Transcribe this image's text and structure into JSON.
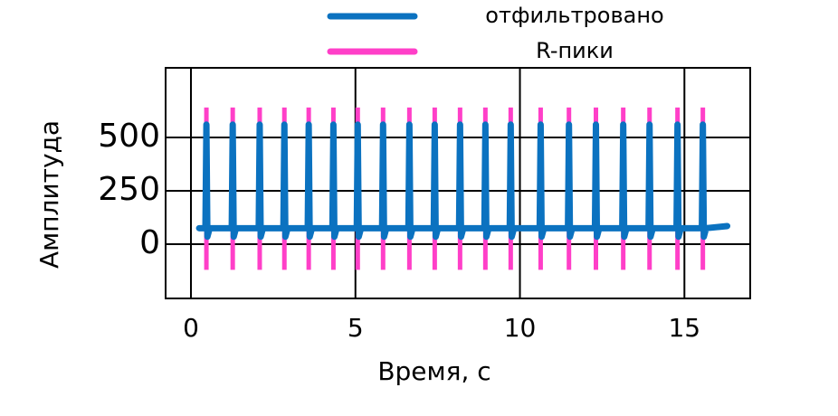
{
  "chart_data": {
    "type": "line",
    "xlabel": "Время, с",
    "ylabel": "Амплитуда",
    "xlim": [
      -0.77,
      17.0
    ],
    "ylim": [
      -254,
      826
    ],
    "xticks": [
      0,
      5,
      10,
      15
    ],
    "yticks": [
      0,
      250,
      500
    ],
    "grid": true,
    "legend": "top",
    "series": [
      {
        "name": "отфильтровано",
        "color": "#0b72c0",
        "x": [
          0.25,
          0.44,
          0.47,
          0.5,
          0.57,
          1.24,
          1.27,
          1.3,
          1.37,
          2.06,
          2.09,
          2.12,
          2.19,
          2.81,
          2.84,
          2.87,
          2.94,
          3.55,
          3.58,
          3.61,
          3.68,
          4.3,
          4.33,
          4.36,
          4.43,
          5.04,
          5.07,
          5.1,
          5.17,
          5.81,
          5.84,
          5.87,
          5.94,
          6.61,
          6.64,
          6.67,
          6.74,
          7.38,
          7.41,
          7.44,
          7.51,
          8.15,
          8.18,
          8.21,
          8.28,
          8.92,
          8.95,
          8.98,
          9.05,
          9.69,
          9.72,
          9.75,
          9.82,
          10.6,
          10.63,
          10.66,
          10.73,
          11.46,
          11.49,
          11.52,
          11.59,
          12.28,
          12.31,
          12.34,
          12.41,
          13.11,
          13.14,
          13.17,
          13.24,
          13.91,
          13.94,
          13.97,
          14.04,
          14.76,
          14.79,
          14.82,
          14.89,
          15.53,
          15.56,
          15.59,
          15.66,
          16.3
        ],
        "values": [
          75,
          75,
          560,
          35,
          75,
          75,
          560,
          35,
          75,
          75,
          560,
          35,
          75,
          75,
          560,
          35,
          75,
          75,
          560,
          35,
          75,
          75,
          560,
          35,
          75,
          75,
          560,
          35,
          75,
          75,
          560,
          35,
          75,
          75,
          560,
          35,
          75,
          75,
          560,
          35,
          75,
          75,
          560,
          35,
          75,
          75,
          560,
          35,
          75,
          75,
          560,
          35,
          75,
          75,
          560,
          35,
          75,
          75,
          560,
          35,
          75,
          75,
          560,
          35,
          75,
          75,
          560,
          35,
          75,
          75,
          560,
          35,
          75,
          75,
          560,
          35,
          75,
          75,
          560,
          35,
          75,
          85
        ]
      },
      {
        "name": "R-пики",
        "color": "#ff3fc8",
        "style": "vlines",
        "x": [
          0.47,
          1.27,
          2.09,
          2.84,
          3.58,
          4.33,
          5.07,
          5.84,
          6.64,
          7.41,
          8.18,
          8.95,
          9.72,
          10.63,
          11.49,
          12.31,
          13.14,
          13.94,
          14.79,
          15.56
        ],
        "ymin": -120,
        "ymax": 640
      }
    ]
  }
}
